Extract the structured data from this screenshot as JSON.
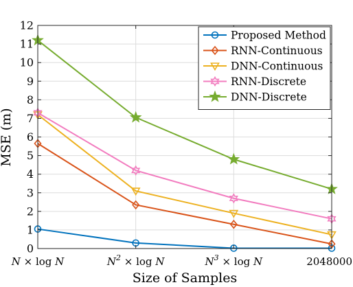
{
  "chart_data": {
    "type": "line",
    "xlabel": "Size of Samples",
    "ylabel": "MSE (m)",
    "ylim": [
      0,
      12
    ],
    "yticks": [
      0,
      1,
      2,
      3,
      4,
      5,
      6,
      7,
      8,
      9,
      10,
      11,
      12
    ],
    "grid": true,
    "legend_position": "top-right",
    "categories": [
      {
        "base": "N",
        "exp": "",
        "rest": " × log ",
        "var": "N"
      },
      {
        "base": "N",
        "exp": "2",
        "rest": " × log ",
        "var": "N"
      },
      {
        "base": "N",
        "exp": "3",
        "rest": " × log ",
        "var": "N"
      },
      {
        "base": "",
        "exp": "",
        "rest": "2048000",
        "var": ""
      }
    ],
    "series": [
      {
        "name": "Proposed Method",
        "color": "#0072BD",
        "marker": "circle",
        "values": [
          1.05,
          0.3,
          0.02,
          0.02
        ]
      },
      {
        "name": "RNN-Continuous",
        "color": "#D95319",
        "marker": "diamond",
        "values": [
          5.65,
          2.35,
          1.3,
          0.25
        ]
      },
      {
        "name": "DNN-Continuous",
        "color": "#EDB120",
        "marker": "triangle-down",
        "values": [
          7.2,
          3.1,
          1.9,
          0.75
        ]
      },
      {
        "name": "RNN-Discrete",
        "color": "#F27CBF",
        "marker": "hexagram",
        "values": [
          7.3,
          4.2,
          2.7,
          1.6
        ]
      },
      {
        "name": "DNN-Discrete",
        "color": "#77AC30",
        "marker": "pentagram",
        "values": [
          11.2,
          7.05,
          4.8,
          3.2
        ]
      }
    ]
  }
}
